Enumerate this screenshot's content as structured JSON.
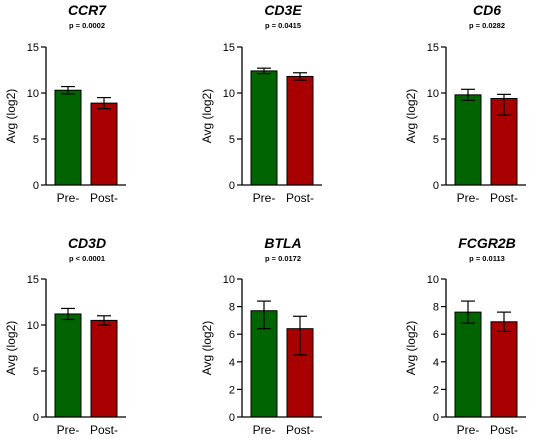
{
  "figure": {
    "bar_colors": {
      "pre": "#006400",
      "post": "#a80000"
    },
    "axis_color": "#000000"
  },
  "chart_data": [
    {
      "type": "bar",
      "title": "CCR7",
      "subtitle": "p = 0.0002",
      "ylabel": "Avg (log2)",
      "categories": [
        "Pre-",
        "Post-"
      ],
      "values": [
        10.3,
        8.9
      ],
      "error": [
        0.4,
        0.6
      ],
      "ylim": [
        0,
        15
      ],
      "yticks": [
        0,
        5,
        10,
        15
      ]
    },
    {
      "type": "bar",
      "title": "CD3E",
      "subtitle": "p = 0.0415",
      "ylabel": "Avg (log2)",
      "categories": [
        "Pre-",
        "Post-"
      ],
      "values": [
        12.4,
        11.8
      ],
      "error": [
        0.3,
        0.4
      ],
      "ylim": [
        0,
        15
      ],
      "yticks": [
        0,
        5,
        10,
        15
      ]
    },
    {
      "type": "bar",
      "title": "CD6",
      "subtitle": "p = 0.0282",
      "ylabel": "Avg (log2)",
      "categories": [
        "Pre-",
        "Post-"
      ],
      "values": [
        9.8,
        9.4
      ],
      "error": [
        0.6,
        0.45
      ],
      "error_low": [
        0.6,
        1.8
      ],
      "ylim": [
        0,
        15
      ],
      "yticks": [
        0,
        5,
        10,
        15
      ]
    },
    {
      "type": "bar",
      "title": "CD3D",
      "subtitle": "p < 0.0001",
      "ylabel": "Avg (log2)",
      "categories": [
        "Pre-",
        "Post-"
      ],
      "values": [
        11.2,
        10.5
      ],
      "error": [
        0.6,
        0.5
      ],
      "ylim": [
        0,
        15
      ],
      "yticks": [
        0,
        5,
        10,
        15
      ]
    },
    {
      "type": "bar",
      "title": "BTLA",
      "subtitle": "p = 0.0172",
      "ylabel": "Avg (log2)",
      "categories": [
        "Pre-",
        "Post-"
      ],
      "values": [
        7.7,
        6.4
      ],
      "error": [
        0.7,
        0.9
      ],
      "error_low": [
        1.3,
        1.9
      ],
      "ylim": [
        0,
        10
      ],
      "yticks": [
        0,
        2,
        4,
        6,
        8,
        10
      ]
    },
    {
      "type": "bar",
      "title": "FCGR2B",
      "subtitle": "p = 0.0113",
      "ylabel": "Avg (log2)",
      "categories": [
        "Pre-",
        "Post-"
      ],
      "values": [
        7.6,
        6.9
      ],
      "error": [
        0.8,
        0.7
      ],
      "ylim": [
        0,
        10
      ],
      "yticks": [
        0,
        2,
        4,
        6,
        8,
        10
      ]
    }
  ]
}
